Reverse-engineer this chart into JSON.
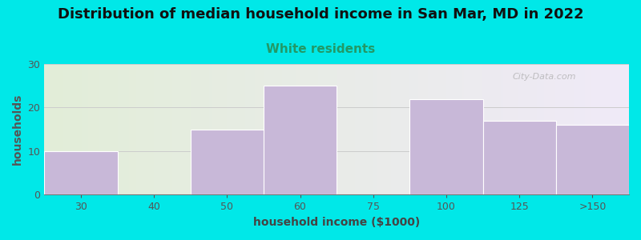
{
  "title": "Distribution of median household income in San Mar, MD in 2022",
  "subtitle": "White residents",
  "xlabel": "household income ($1000)",
  "ylabel": "households",
  "categories": [
    "30",
    "40",
    "50",
    "60",
    "75",
    "100",
    "125",
    ">150"
  ],
  "values": [
    10,
    0,
    15,
    25,
    0,
    22,
    17,
    16
  ],
  "bar_color": "#c8b8d8",
  "background_color": "#00e8e8",
  "plot_bg_left": "#e2eed8",
  "plot_bg_right": "#f0eaf8",
  "title_color": "#111111",
  "subtitle_color": "#229966",
  "axis_color": "#777777",
  "ylabel_color": "#555555",
  "xlabel_color": "#444444",
  "tick_color": "#555555",
  "grid_color": "#cccccc",
  "ylim": [
    0,
    30
  ],
  "yticks": [
    0,
    10,
    20,
    30
  ],
  "title_fontsize": 13,
  "subtitle_fontsize": 11,
  "xlabel_fontsize": 10,
  "ylabel_fontsize": 10,
  "watermark_text": "City-Data.com"
}
